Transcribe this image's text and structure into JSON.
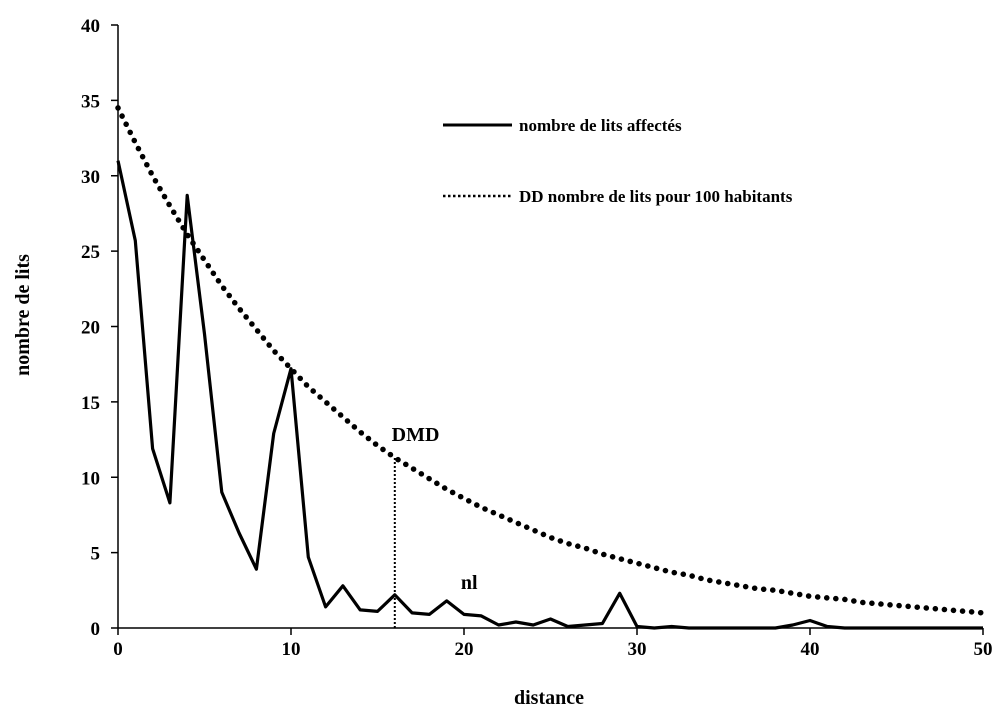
{
  "chart_data": {
    "type": "line",
    "title": "",
    "xlabel": "distance",
    "ylabel": "nombre de lits",
    "xlim": [
      0,
      50
    ],
    "ylim": [
      0,
      40
    ],
    "x_ticks": [
      0,
      10,
      20,
      30,
      40,
      50
    ],
    "y_ticks": [
      0,
      5,
      10,
      15,
      20,
      25,
      30,
      35,
      40
    ],
    "grid": false,
    "legend": "top-right",
    "series": [
      {
        "name": "nombre de lits affectés",
        "style": "solid",
        "color": "#000000",
        "x": [
          0,
          1,
          2,
          3,
          4,
          5,
          6,
          7,
          8,
          9,
          10,
          11,
          12,
          13,
          14,
          15,
          16,
          17,
          18,
          19,
          20,
          21,
          22,
          23,
          24,
          25,
          26,
          27,
          28,
          29,
          30,
          31,
          32,
          33,
          34,
          35,
          36,
          37,
          38,
          39,
          40,
          41,
          42,
          43,
          44,
          45,
          46,
          47,
          48,
          49,
          50
        ],
        "y": [
          31,
          25.7,
          11.9,
          8.3,
          28.7,
          19.5,
          9,
          6.3,
          3.9,
          12.9,
          17.2,
          4.7,
          1.4,
          2.8,
          1.2,
          1.1,
          2.2,
          1,
          0.9,
          1.8,
          0.9,
          0.8,
          0.2,
          0.4,
          0.2,
          0.6,
          0.1,
          0.2,
          0.3,
          2.3,
          0.1,
          0,
          0.1,
          0,
          0,
          0,
          0,
          0,
          0,
          0.2,
          0.5,
          0.1,
          0,
          0,
          0,
          0,
          0,
          0,
          0,
          0,
          0
        ]
      },
      {
        "name": "DD nombre de lits pour 100 habitants",
        "style": "dotted",
        "color": "#000000",
        "x": [
          0,
          1,
          2,
          3,
          4,
          5,
          6,
          7,
          8,
          9,
          10,
          11,
          12,
          13,
          14,
          15,
          16,
          17,
          18,
          19,
          20,
          21,
          22,
          23,
          24,
          25,
          26,
          27,
          28,
          29,
          30,
          31,
          32,
          33,
          34,
          35,
          36,
          37,
          38,
          39,
          40,
          41,
          42,
          43,
          44,
          45,
          46,
          47,
          48,
          49,
          50
        ],
        "y": [
          34.5,
          32.2,
          30.0,
          28.0,
          26.1,
          24.4,
          22.7,
          21.2,
          19.8,
          18.4,
          17.2,
          16.0,
          15.0,
          14.0,
          13.0,
          12.1,
          11.3,
          10.6,
          9.9,
          9.2,
          8.6,
          8.0,
          7.5,
          7.0,
          6.5,
          6.0,
          5.6,
          5.3,
          4.9,
          4.6,
          4.3,
          4.0,
          3.7,
          3.5,
          3.2,
          3.0,
          2.8,
          2.6,
          2.5,
          2.3,
          2.1,
          2.0,
          1.9,
          1.7,
          1.6,
          1.5,
          1.4,
          1.3,
          1.2,
          1.1,
          1.0
        ]
      }
    ],
    "annotations": [
      {
        "text": "DMD",
        "x": 17.2,
        "y": 12.4
      },
      {
        "text": "nl",
        "x": 20.3,
        "y": 2.6
      }
    ],
    "reference_line": {
      "x": 16,
      "y_from": 0,
      "y_to": 11.3,
      "style": "dotted"
    }
  }
}
